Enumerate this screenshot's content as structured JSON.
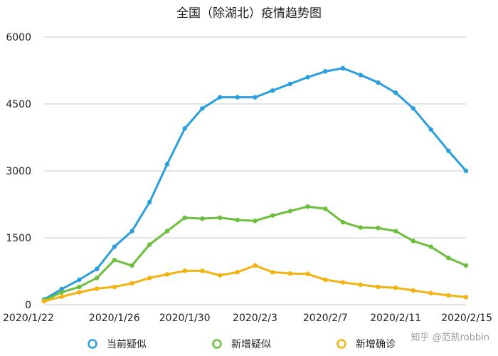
{
  "chart_data": {
    "type": "line",
    "title": "全国（除湖北）疫情趋势图",
    "xlabel": "",
    "ylabel": "",
    "ylim": [
      0,
      6000
    ],
    "yticks": [
      0,
      1500,
      3000,
      4500,
      6000
    ],
    "grid": true,
    "legend_position": "bottom",
    "x": [
      "2020/1/22",
      "2020/1/23",
      "2020/1/24",
      "2020/1/25",
      "2020/1/26",
      "2020/1/27",
      "2020/1/28",
      "2020/1/29",
      "2020/1/30",
      "2020/1/31",
      "2020/2/1",
      "2020/2/2",
      "2020/2/3",
      "2020/2/4",
      "2020/2/5",
      "2020/2/6",
      "2020/2/7",
      "2020/2/8",
      "2020/2/9",
      "2020/2/10",
      "2020/2/11",
      "2020/2/12",
      "2020/2/13",
      "2020/2/14",
      "2020/2/15"
    ],
    "x_tick_labels": [
      "2020/1/22",
      "2020/1/26",
      "2020/1/30",
      "2020/2/3",
      "2020/2/7",
      "2020/2/11",
      "2020/2/15"
    ],
    "x_tick_indices": [
      0,
      4,
      8,
      12,
      16,
      20,
      24
    ],
    "series": [
      {
        "name": "当前疑似",
        "color": "#2a9fdc",
        "values": [
          120,
          350,
          560,
          800,
          1300,
          1650,
          2300,
          3150,
          3950,
          4400,
          4650,
          4650,
          4650,
          4800,
          4950,
          5100,
          5230,
          5300,
          5150,
          4980,
          4750,
          4400,
          3930,
          3450,
          3000
        ]
      },
      {
        "name": "新增疑似",
        "color": "#6cbf3c",
        "values": [
          100,
          280,
          400,
          600,
          1000,
          880,
          1350,
          1650,
          1950,
          1930,
          1950,
          1900,
          1880,
          2000,
          2100,
          2200,
          2150,
          1850,
          1730,
          1720,
          1650,
          1430,
          1300,
          1050,
          880
        ]
      },
      {
        "name": "新增确诊",
        "color": "#f2b211",
        "values": [
          80,
          180,
          280,
          360,
          400,
          480,
          600,
          680,
          760,
          760,
          660,
          730,
          880,
          730,
          700,
          690,
          560,
          500,
          450,
          400,
          380,
          320,
          260,
          210,
          170
        ]
      }
    ]
  },
  "watermark": "知乎 @范凯robbin"
}
